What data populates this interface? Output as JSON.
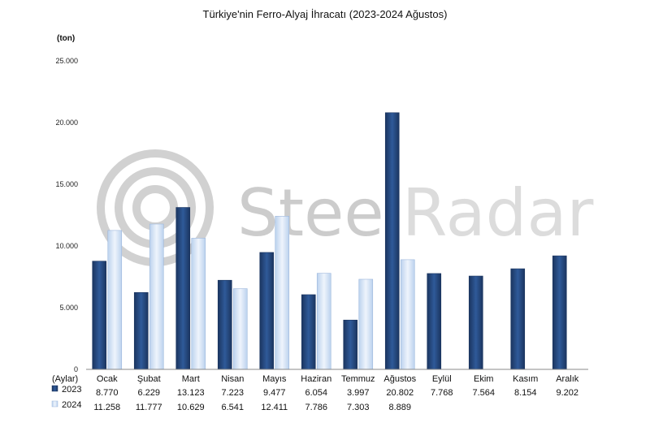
{
  "chart_data": {
    "type": "bar",
    "title": "Türkiye'nin Ferro-Alyaj İhracatı (2023-2024 Ağustos)",
    "ylabel": "(ton)",
    "xlabel": "(Aylar)",
    "ylim": [
      0,
      25000
    ],
    "yticks": [
      "0",
      "5.000",
      "10.000",
      "15.000",
      "20.000",
      "25.000"
    ],
    "ytick_values": [
      0,
      5000,
      10000,
      15000,
      20000,
      25000
    ],
    "grid": false,
    "legend": "data-table-left",
    "categories": [
      "Ocak",
      "Şubat",
      "Mart",
      "Nisan",
      "Mayıs",
      "Haziran",
      "Temmuz",
      "Ağustos",
      "Eylül",
      "Ekim",
      "Kasım",
      "Aralık"
    ],
    "series": [
      {
        "name": "2023",
        "color": "#23457a",
        "values": [
          8770,
          6229,
          13123,
          7223,
          9477,
          6054,
          3997,
          20802,
          7768,
          7564,
          8154,
          9202
        ],
        "labels": [
          "8.770",
          "6.229",
          "13.123",
          "7.223",
          "9.477",
          "6.054",
          "3.997",
          "20.802",
          "7.768",
          "7.564",
          "8.154",
          "9.202"
        ]
      },
      {
        "name": "2024",
        "color": "#d3e2f5",
        "values": [
          11258,
          11777,
          10629,
          6541,
          12411,
          7786,
          7303,
          8889,
          null,
          null,
          null,
          null
        ],
        "labels": [
          "11.258",
          "11.777",
          "10.629",
          "6.541",
          "12.411",
          "7.786",
          "7.303",
          "8.889",
          "",
          "",
          "",
          ""
        ]
      }
    ]
  },
  "watermark": {
    "text": "SteelRadar",
    "part1": "Steel",
    "part2": "Radar",
    "color": "#c9c9c9"
  }
}
